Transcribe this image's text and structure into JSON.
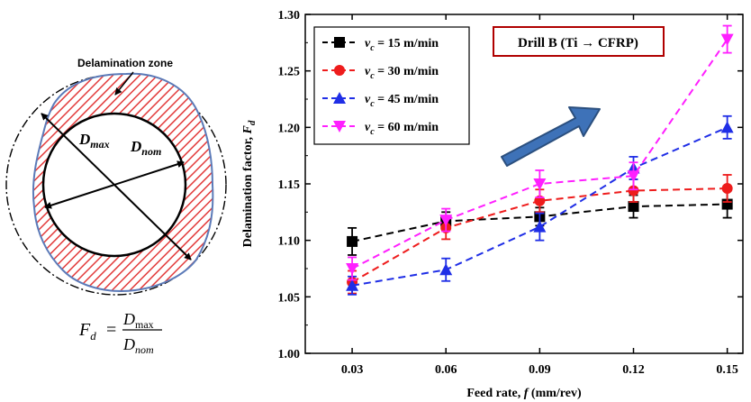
{
  "diagram": {
    "zone_label": "Delamination zone",
    "dmax_main": "D",
    "dmax_sub": "max",
    "dnom_main": "D",
    "dnom_sub": "nom",
    "formula": {
      "lhs_main": "F",
      "lhs_sub": "d",
      "equals": "=",
      "num_main": "D",
      "num_sub": "max",
      "den_main": "D",
      "den_sub": "nom"
    }
  },
  "chart_data": {
    "type": "line",
    "x": [
      0.03,
      0.06,
      0.09,
      0.12,
      0.15
    ],
    "x_tick_labels": [
      "0.03",
      "0.06",
      "0.09",
      "0.12",
      "0.15"
    ],
    "xlim": [
      0.015,
      0.155
    ],
    "ylim": [
      1.0,
      1.3
    ],
    "y_ticks": [
      1.0,
      1.05,
      1.1,
      1.15,
      1.2,
      1.25,
      1.3
    ],
    "y_tick_labels": [
      "1.00",
      "1.05",
      "1.10",
      "1.15",
      "1.20",
      "1.25",
      "1.30"
    ],
    "xlabel": {
      "prefix": "Feed rate, ",
      "symbol": "f",
      "suffix": " (mm/rev)"
    },
    "ylabel": {
      "prefix": "Delamination factor, ",
      "symbol": "F",
      "sub": "d"
    },
    "annotation": "Drill B (Ti → CFRP)",
    "legend_position": "top-left",
    "series": [
      {
        "label_main": "v",
        "label_sub": "c",
        "label_rest": " = 15 m/min",
        "color": "#000000",
        "marker": "square",
        "values": [
          1.099,
          1.117,
          1.121,
          1.13,
          1.132
        ],
        "errors": [
          0.012,
          0.008,
          0.008,
          0.01,
          0.012
        ]
      },
      {
        "label_main": "v",
        "label_sub": "c",
        "label_rest": " = 30 m/min",
        "color": "#ee1c1c",
        "marker": "circle",
        "values": [
          1.063,
          1.111,
          1.135,
          1.144,
          1.146
        ],
        "errors": [
          0.01,
          0.01,
          0.01,
          0.01,
          0.012
        ]
      },
      {
        "label_main": "v",
        "label_sub": "c",
        "label_rest": " = 45 m/min",
        "color": "#1f2ee6",
        "marker": "triangle-up",
        "values": [
          1.06,
          1.074,
          1.112,
          1.164,
          1.2
        ],
        "errors": [
          0.008,
          0.01,
          0.012,
          0.01,
          0.01
        ]
      },
      {
        "label_main": "v",
        "label_sub": "c",
        "label_rest": " = 60 m/min",
        "color": "#ff1fff",
        "marker": "triangle-down",
        "values": [
          1.075,
          1.118,
          1.15,
          1.157,
          1.278
        ],
        "errors": [
          0.01,
          0.01,
          0.012,
          0.012,
          0.012
        ]
      }
    ],
    "colors": {
      "zone_fill": "#e23a3a",
      "zone_edge": "#5b7ab8",
      "arrow_fill": "#3e72b8",
      "arrow_edge": "#2b4f7e",
      "annotation_border": "#b00000"
    },
    "grid": false
  }
}
